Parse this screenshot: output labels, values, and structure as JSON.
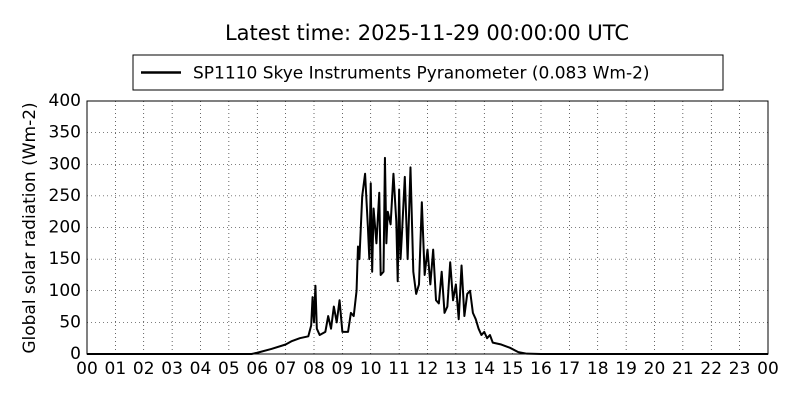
{
  "chart_data": {
    "type": "line",
    "title": "Latest time: 2025-11-29 00:00:00 UTC",
    "y_label": "Global solar radiation (Wm-2)",
    "series": [
      {
        "name": "SP1110 Skye Instruments Pyranometer (0.083 Wm-2)",
        "color": "#000000",
        "x": [
          0,
          5.8,
          6.0,
          6.5,
          7.0,
          7.2,
          7.5,
          7.8,
          7.9,
          7.95,
          8.0,
          8.05,
          8.1,
          8.2,
          8.4,
          8.5,
          8.6,
          8.7,
          8.8,
          8.9,
          9.0,
          9.2,
          9.3,
          9.4,
          9.5,
          9.55,
          9.6,
          9.7,
          9.8,
          9.9,
          9.95,
          10.0,
          10.05,
          10.1,
          10.2,
          10.3,
          10.35,
          10.45,
          10.5,
          10.55,
          10.6,
          10.7,
          10.8,
          10.9,
          10.95,
          11.0,
          11.05,
          11.1,
          11.2,
          11.3,
          11.4,
          11.5,
          11.6,
          11.7,
          11.8,
          11.9,
          12.0,
          12.1,
          12.2,
          12.3,
          12.4,
          12.5,
          12.6,
          12.7,
          12.8,
          12.9,
          13.0,
          13.1,
          13.2,
          13.3,
          13.4,
          13.5,
          13.6,
          13.7,
          13.8,
          13.9,
          14.0,
          14.1,
          14.2,
          14.3,
          14.6,
          14.9,
          15.2,
          15.5,
          16.0,
          24.0
        ],
        "values": [
          0,
          0,
          2,
          8,
          15,
          20,
          25,
          28,
          45,
          90,
          50,
          108,
          40,
          30,
          35,
          60,
          40,
          75,
          50,
          85,
          35,
          35,
          65,
          60,
          100,
          170,
          150,
          250,
          285,
          200,
          150,
          270,
          130,
          230,
          175,
          255,
          125,
          130,
          310,
          175,
          225,
          205,
          285,
          210,
          115,
          260,
          150,
          190,
          280,
          150,
          295,
          130,
          95,
          110,
          240,
          125,
          165,
          110,
          165,
          85,
          80,
          130,
          65,
          75,
          145,
          85,
          110,
          55,
          140,
          60,
          95,
          100,
          65,
          55,
          40,
          30,
          35,
          25,
          30,
          18,
          15,
          10,
          3,
          0.5,
          0,
          0
        ]
      }
    ],
    "xlim": [
      0,
      24
    ],
    "xticks": [
      {
        "value": 0,
        "label": "00"
      },
      {
        "value": 1,
        "label": "01"
      },
      {
        "value": 2,
        "label": "02"
      },
      {
        "value": 3,
        "label": "03"
      },
      {
        "value": 4,
        "label": "04"
      },
      {
        "value": 5,
        "label": "05"
      },
      {
        "value": 6,
        "label": "06"
      },
      {
        "value": 7,
        "label": "07"
      },
      {
        "value": 8,
        "label": "08"
      },
      {
        "value": 9,
        "label": "09"
      },
      10,
      11,
      12,
      13,
      14,
      15,
      16,
      17,
      18,
      19,
      20,
      21,
      22,
      23,
      {
        "value": 24,
        "label": "00"
      }
    ],
    "ylim": [
      0,
      400
    ],
    "yticks": [
      0,
      50,
      100,
      150,
      200,
      250,
      300,
      350,
      400
    ],
    "grid": true,
    "legend": "top"
  }
}
